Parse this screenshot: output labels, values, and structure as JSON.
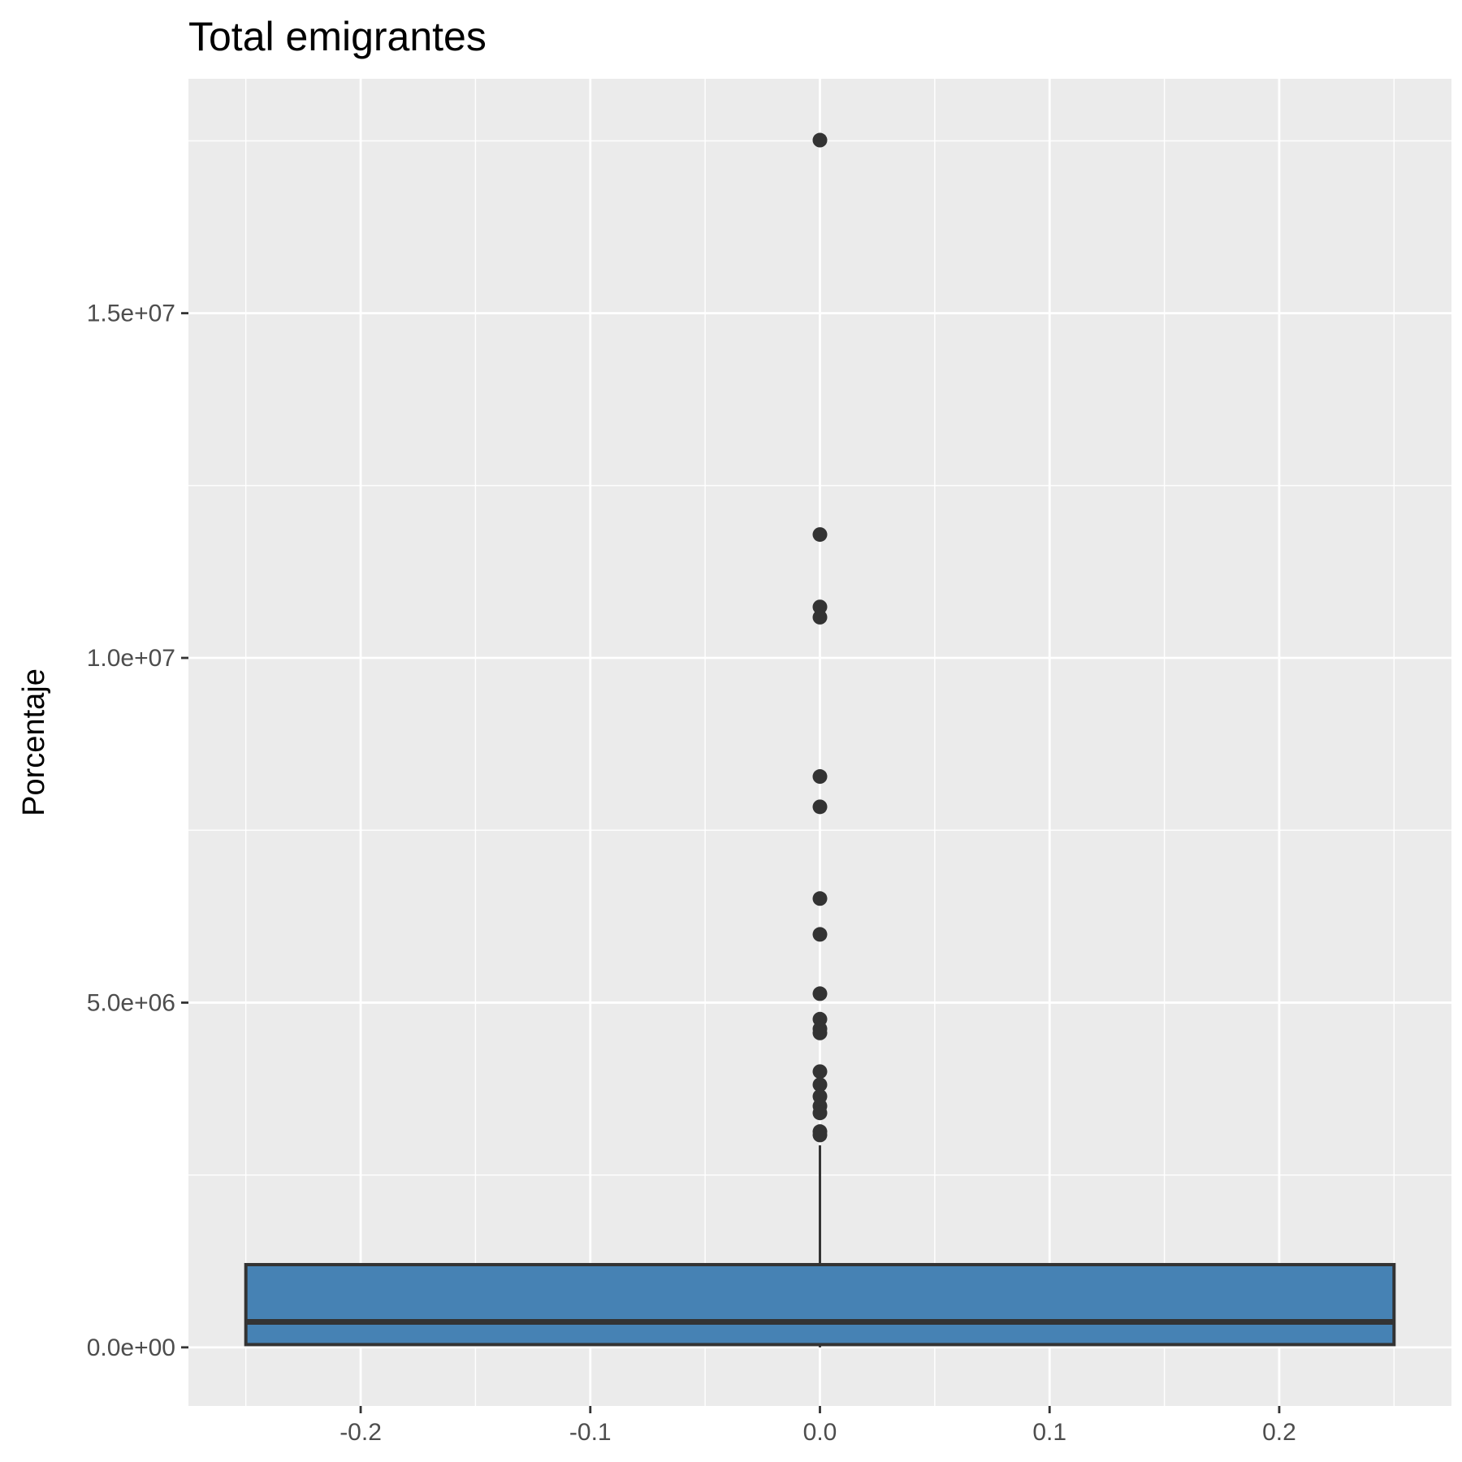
{
  "chart_data": {
    "type": "boxplot",
    "title": "Total emigrantes",
    "xlabel": "",
    "ylabel": "Porcentaje",
    "xlim": [
      -0.275,
      0.275
    ],
    "ylim": [
      -850000,
      18400000
    ],
    "x_ticks": [
      -0.2,
      -0.1,
      0.0,
      0.1,
      0.2
    ],
    "x_tick_labels": [
      "-0.2",
      "-0.1",
      "0.0",
      "0.1",
      "0.2"
    ],
    "y_ticks": [
      0,
      5000000,
      10000000,
      15000000
    ],
    "y_tick_labels": [
      "0.0e+00",
      "5.0e+06",
      "1.0e+07",
      "1.5e+07"
    ],
    "grid": true,
    "box": {
      "x_center": 0.0,
      "x_left": -0.25,
      "x_right": 0.25,
      "lower_whisker": 0,
      "q1": 40000,
      "median": 370000,
      "q3": 1200000,
      "upper_whisker": 2930000,
      "fill": "#4682B4",
      "outline": "#333333"
    },
    "outliers": [
      17510000,
      11790000,
      10740000,
      10590000,
      8280000,
      7840000,
      6510000,
      5990000,
      5130000,
      4760000,
      4620000,
      4560000,
      4000000,
      3810000,
      3640000,
      3500000,
      3400000,
      3130000,
      3080000
    ],
    "colors": {
      "panel_background": "#EBEBEB",
      "grid": "#FFFFFF",
      "outlier": "#333333"
    }
  }
}
